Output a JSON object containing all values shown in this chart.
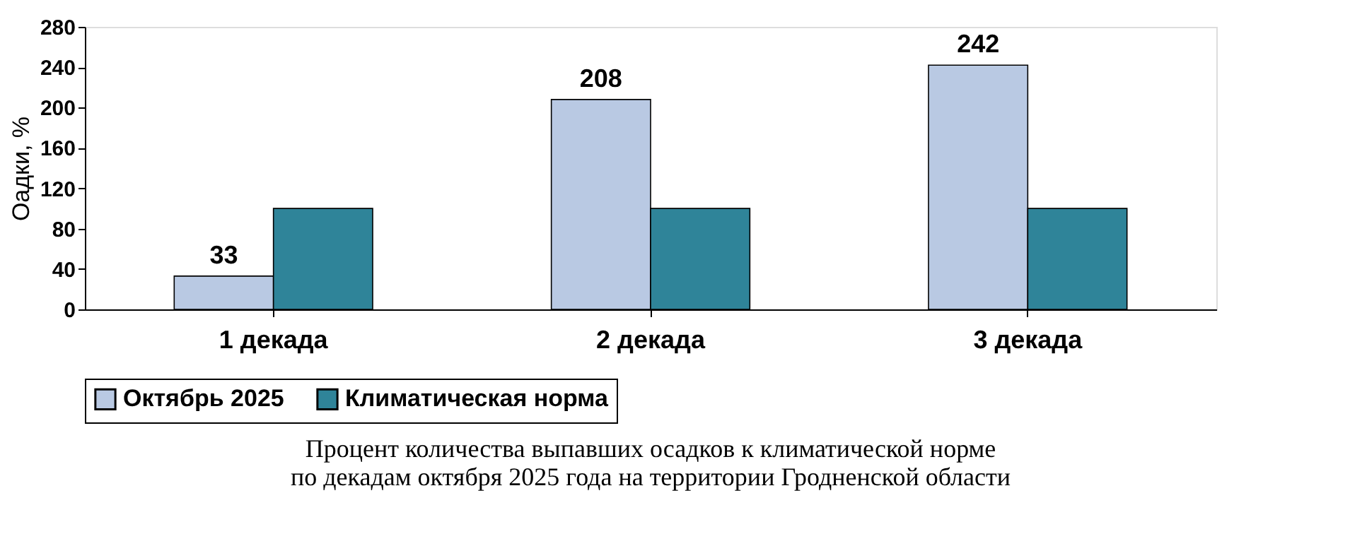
{
  "chart_data": {
    "type": "bar",
    "ylabel": "Оадки, %",
    "categories": [
      "1 декада",
      "2 декада",
      "3 декада"
    ],
    "series": [
      {
        "name": "Октябрь 2025",
        "color": "#b9c9e3",
        "values": [
          33,
          208,
          242
        ],
        "value_labels": [
          "33",
          "208",
          "242"
        ]
      },
      {
        "name": "Климатическая норма",
        "color": "#2f8499",
        "values": [
          100,
          100,
          100
        ]
      }
    ],
    "ylim": [
      0,
      280
    ],
    "yticks": [
      0,
      40,
      80,
      120,
      160,
      200,
      240,
      280
    ],
    "grid": false,
    "legend": "bottom",
    "annotations": [
      "Процент количества выпавших осадков к климатической норме",
      "по декадам октября 2025 года на территории Гродненской области"
    ]
  }
}
